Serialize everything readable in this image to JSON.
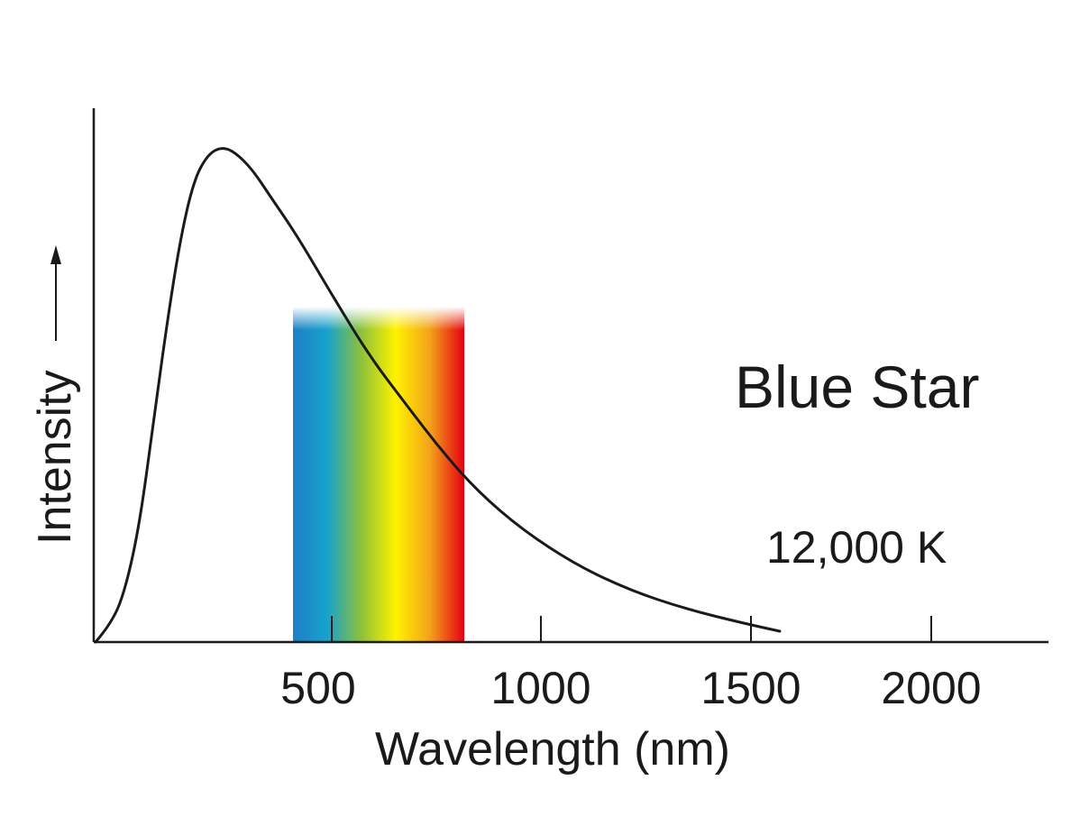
{
  "chart_data": {
    "type": "line",
    "xlabel": "Wavelength (nm)",
    "ylabel": "Intensity",
    "x_ticks": [
      500,
      1000,
      1500,
      2000
    ],
    "x_tick_labels": [
      "500",
      "1000",
      "1500",
      "2000"
    ],
    "xlim": [
      -50,
      2230
    ],
    "ylim": [
      0,
      1.08
    ],
    "grid": false,
    "y_ticks_shown": false,
    "annotations": [
      "Blue Star",
      "12,000 K"
    ],
    "visible_spectrum_band": {
      "x_range": [
        400,
        810
      ],
      "colors": [
        "#1f7fc4",
        "#17a2cc",
        "#8fc13a",
        "#fff200",
        "#f4a11a",
        "#e60012"
      ]
    },
    "series": [
      {
        "color": "#1a1a1a",
        "x": [
          0,
          50,
          100,
          150,
          200,
          250,
          280,
          320,
          400,
          500,
          600,
          700,
          800,
          900,
          1000,
          1100,
          1200,
          1300,
          1400,
          1500,
          1600,
          1590
        ],
        "y": [
          0.0,
          0.18,
          0.55,
          0.86,
          0.98,
          1.0,
          0.99,
          0.95,
          0.84,
          0.69,
          0.55,
          0.43,
          0.33,
          0.25,
          0.19,
          0.14,
          0.1,
          0.075,
          0.05,
          0.035,
          0.03,
          0.02
        ]
      }
    ]
  }
}
